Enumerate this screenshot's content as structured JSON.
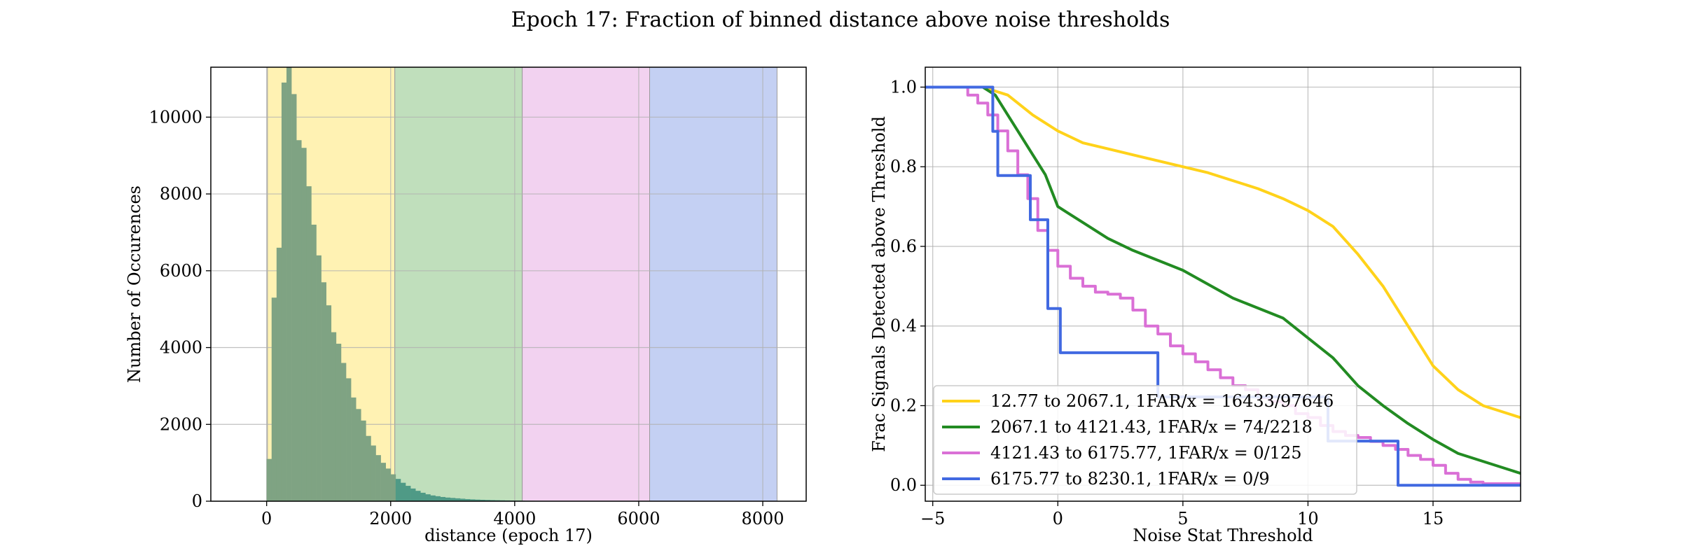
{
  "figure": {
    "title": "Epoch 17: Fraction of binned distance above noise thresholds"
  },
  "chart_data": [
    {
      "type": "bar",
      "title": "",
      "xlabel": "distance (epoch 17)",
      "ylabel": "Number of Occurences",
      "xlim": [
        -900,
        8700
      ],
      "ylim": [
        0,
        11300
      ],
      "xticks": [
        0,
        2000,
        4000,
        6000,
        8000
      ],
      "yticks": [
        0,
        2000,
        4000,
        6000,
        8000,
        10000
      ],
      "grid": true,
      "bands": [
        {
          "from": 12.77,
          "to": 2067.1,
          "color": "#fff2b3"
        },
        {
          "from": 2067.1,
          "to": 4121.43,
          "color": "#c0dfbc"
        },
        {
          "from": 4121.43,
          "to": 6175.77,
          "color": "#f2d2f0"
        },
        {
          "from": 6175.77,
          "to": 8230.1,
          "color": "#c4d0f3"
        }
      ],
      "histogram": {
        "bin_width": 80,
        "bin_start": 0,
        "color": "#7fa383",
        "counts": [
          1100,
          5300,
          6600,
          10900,
          11300,
          10600,
          9400,
          9200,
          8200,
          7200,
          6400,
          5700,
          5100,
          4400,
          4100,
          3600,
          3200,
          2700,
          2400,
          2100,
          1700,
          1450,
          1200,
          1000,
          850,
          700,
          580,
          480,
          400,
          330,
          270,
          220,
          180,
          150,
          130,
          110,
          95,
          85,
          75,
          65,
          55,
          48,
          42,
          37,
          33,
          29,
          26,
          23,
          20,
          18,
          16,
          14,
          12,
          10,
          9,
          8,
          7,
          6,
          5,
          4,
          4,
          3,
          3,
          2,
          2,
          2,
          1,
          1
        ]
      }
    },
    {
      "type": "line",
      "title": "",
      "xlabel": "Noise Stat Threshold",
      "ylabel": "Frac Signals Detected above Threshold",
      "xlim": [
        -5.3,
        18.5
      ],
      "ylim": [
        -0.04,
        1.05
      ],
      "xticks": [
        -5,
        0,
        5,
        10,
        15
      ],
      "xtick_labels": [
        "−5",
        "0",
        "5",
        "10",
        "15"
      ],
      "yticks": [
        0.0,
        0.2,
        0.4,
        0.6,
        0.8,
        1.0
      ],
      "ytick_labels": [
        "0.0",
        "0.2",
        "0.4",
        "0.6",
        "0.8",
        "1.0"
      ],
      "grid": true,
      "legend_position": "lower-left",
      "series": [
        {
          "name": "12.77 to 2067.1, 1FAR/x = 16433/97646",
          "color": "#ffd21a",
          "step": false,
          "x": [
            -5.3,
            -3,
            -2,
            -1,
            0,
            1,
            2,
            3,
            4,
            5,
            6,
            7,
            8,
            9,
            10,
            11,
            12,
            13,
            14,
            15,
            16,
            17,
            18.5
          ],
          "y": [
            1.0,
            1.0,
            0.98,
            0.93,
            0.89,
            0.86,
            0.845,
            0.83,
            0.815,
            0.8,
            0.785,
            0.765,
            0.745,
            0.72,
            0.69,
            0.65,
            0.58,
            0.5,
            0.4,
            0.3,
            0.24,
            0.2,
            0.17
          ]
        },
        {
          "name": "2067.1 to 4121.43, 1FAR/x = 74/2218",
          "color": "#228b22",
          "step": false,
          "x": [
            -5.3,
            -3,
            -2.5,
            -2,
            -1.5,
            -1,
            -0.5,
            0,
            1,
            2,
            3,
            4,
            5,
            6,
            7,
            8,
            9,
            10,
            11,
            12,
            13,
            14,
            15,
            16,
            17,
            18.5
          ],
          "y": [
            1.0,
            1.0,
            0.98,
            0.93,
            0.88,
            0.83,
            0.78,
            0.7,
            0.66,
            0.62,
            0.59,
            0.565,
            0.54,
            0.505,
            0.47,
            0.445,
            0.42,
            0.37,
            0.32,
            0.25,
            0.2,
            0.155,
            0.115,
            0.08,
            0.06,
            0.03
          ]
        },
        {
          "name": "4121.43 to 6175.77, 1FAR/x = 0/125",
          "color": "#da70d6",
          "step": true,
          "x": [
            -5.3,
            -3.6,
            -3.2,
            -2.8,
            -2.4,
            -2.0,
            -1.6,
            -1.2,
            -0.8,
            -0.4,
            0.0,
            0.5,
            1.0,
            1.5,
            2.0,
            2.5,
            3.0,
            3.5,
            4.0,
            4.5,
            5.0,
            5.5,
            6.0,
            6.5,
            7.0,
            7.5,
            8.0,
            8.5,
            9.0,
            9.5,
            10.0,
            10.5,
            11.0,
            11.5,
            12.0,
            12.5,
            13.0,
            13.5,
            14.0,
            14.5,
            15.0,
            15.5,
            16.0,
            16.5,
            17.0,
            18.5
          ],
          "y": [
            1.0,
            0.98,
            0.96,
            0.93,
            0.89,
            0.84,
            0.78,
            0.72,
            0.64,
            0.59,
            0.55,
            0.52,
            0.5,
            0.485,
            0.48,
            0.47,
            0.44,
            0.4,
            0.38,
            0.35,
            0.33,
            0.31,
            0.29,
            0.27,
            0.25,
            0.24,
            0.22,
            0.21,
            0.2,
            0.18,
            0.17,
            0.15,
            0.135,
            0.125,
            0.12,
            0.11,
            0.1,
            0.09,
            0.075,
            0.065,
            0.05,
            0.03,
            0.015,
            0.008,
            0.004,
            0.0
          ]
        },
        {
          "name": "6175.77 to 8230.1, 1FAR/x = 0/9",
          "color": "#4169e1",
          "step": true,
          "x": [
            -5.3,
            -2.6,
            -2.4,
            -1.1,
            -0.4,
            0.1,
            4.0,
            10.8,
            13.6,
            18.5
          ],
          "y": [
            1.0,
            0.889,
            0.778,
            0.667,
            0.444,
            0.333,
            0.222,
            0.111,
            0.0,
            0.0
          ]
        }
      ]
    }
  ]
}
